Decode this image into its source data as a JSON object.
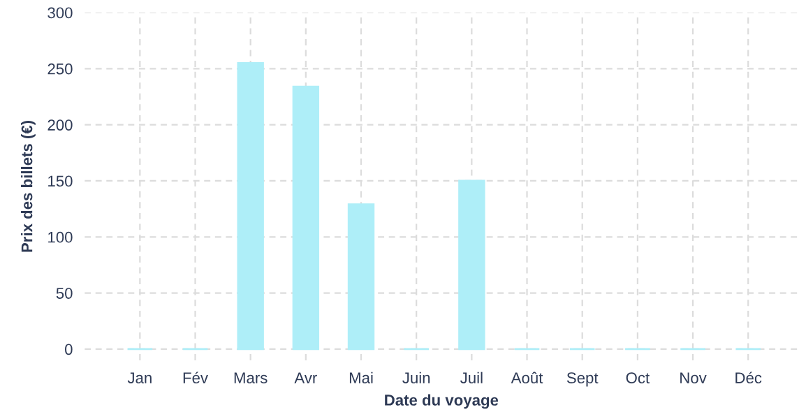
{
  "chart_data": {
    "type": "bar",
    "xlabel": "Date du voyage",
    "ylabel": "Prix des billets (€)",
    "categories": [
      "Jan",
      "Fév",
      "Mars",
      "Avr",
      "Mai",
      "Juin",
      "Juil",
      "Août",
      "Sept",
      "Oct",
      "Nov",
      "Déc"
    ],
    "values": [
      0,
      0,
      255,
      234,
      129,
      0,
      150,
      0,
      0,
      0,
      0,
      0
    ],
    "color": "#aeeef8",
    "ylim": [
      -10,
      300
    ],
    "yticks": [
      0,
      50,
      100,
      150,
      200,
      250,
      300
    ],
    "grid": true
  }
}
